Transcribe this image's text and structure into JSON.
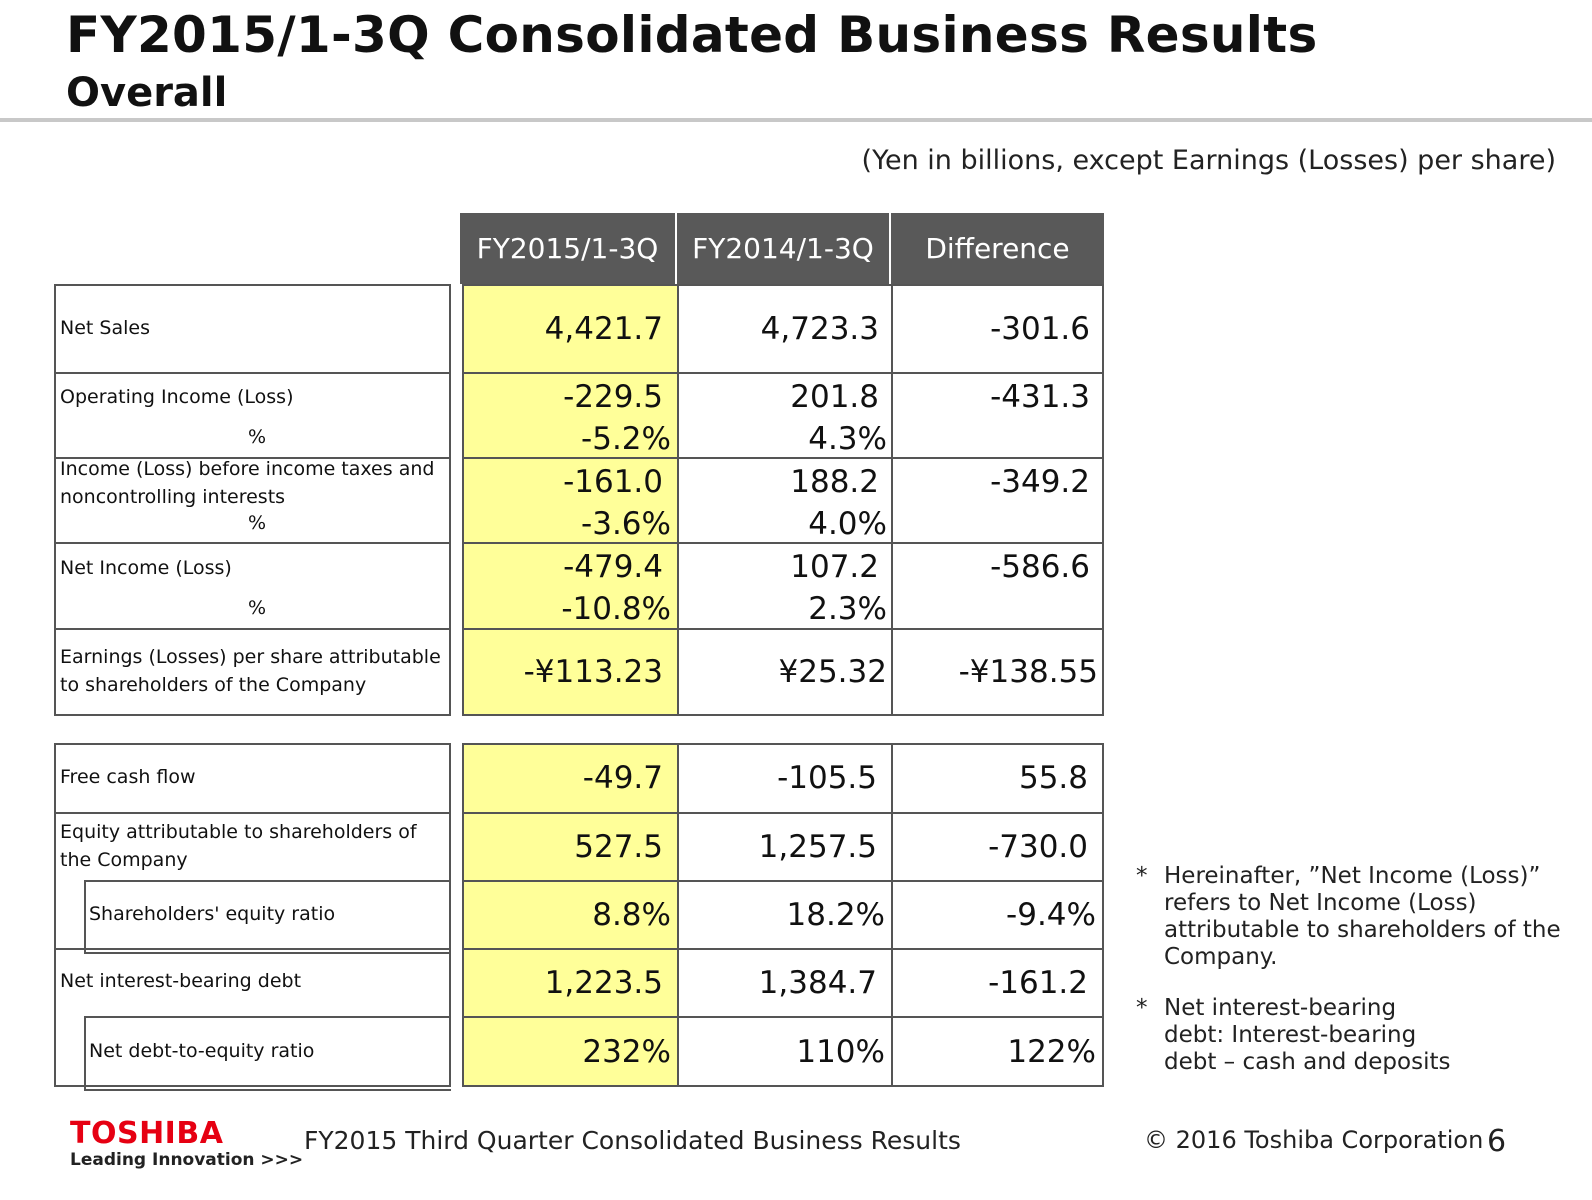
{
  "header": {
    "title": "FY2015/1-3Q Consolidated Business Results",
    "subtitle": "Overall",
    "units": "(Yen in billions, except Earnings (Losses) per share)"
  },
  "table": {
    "columns": [
      "FY2015/1-3Q",
      "FY2014/1-3Q",
      "Difference"
    ],
    "rows": [
      {
        "label": "Net Sales",
        "values": [
          "4,421.7",
          "4,723.3",
          "-301.6"
        ]
      },
      {
        "label": "Operating Income (Loss)",
        "values": [
          "-229.5",
          "201.8",
          "-431.3"
        ],
        "pct_label": "%",
        "pct": [
          "-5.2%",
          "4.3%"
        ]
      },
      {
        "label": "Income (Loss) before income taxes and",
        "label2": "noncontrolling interests",
        "values": [
          "-161.0",
          "188.2",
          "-349.2"
        ],
        "pct_label": "%",
        "pct": [
          "-3.6%",
          "4.0%"
        ]
      },
      {
        "label": "Net Income (Loss)",
        "values": [
          "-479.4",
          "107.2",
          "-586.6"
        ],
        "pct_label": "%",
        "pct": [
          "-10.8%",
          "2.3%"
        ]
      },
      {
        "label": "Earnings (Losses) per share attributable",
        "label2": "to shareholders of the Company",
        "values": [
          "-¥113.23",
          "¥25.32",
          "-¥138.55"
        ]
      }
    ],
    "rows2": [
      {
        "label": "Free cash flow",
        "values": [
          "-49.7",
          "-105.5",
          "55.8"
        ]
      },
      {
        "label": "Equity attributable to shareholders of",
        "label2": "the Company",
        "values": [
          "527.5",
          "1,257.5",
          "-730.0"
        ]
      },
      {
        "label": "Shareholders' equity ratio",
        "values": [
          "8.8%",
          "18.2%",
          "-9.4%"
        ]
      },
      {
        "label": "Net interest-bearing debt",
        "values": [
          "1,223.5",
          "1,384.7",
          "-161.2"
        ]
      },
      {
        "label": "Net debt-to-equity ratio",
        "values": [
          "232%",
          "110%",
          "122%"
        ]
      }
    ]
  },
  "notes": [
    {
      "marker": "*",
      "text": "Hereinafter, ”Net Income (Loss)” refers to Net Income (Loss) attributable to shareholders of the Company."
    },
    {
      "marker": "*",
      "text": "Net interest-bearing debt: Interest-bearing debt – cash and deposits"
    }
  ],
  "footer": {
    "logo": "TOSHIBA",
    "tagline": "Leading Innovation >>>",
    "doc_title": "FY2015 Third Quarter Consolidated Business Results",
    "copyright": "© 2016 Toshiba Corporation",
    "page_number": "6"
  },
  "colors": {
    "header_bg": "#595959",
    "highlight": "#ffff99",
    "logo_red": "#e60012"
  }
}
